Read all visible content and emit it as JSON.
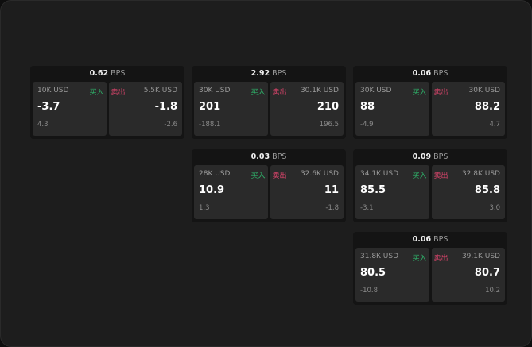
{
  "colors": {
    "buy": "#2fb36a",
    "sell": "#e0456d"
  },
  "labels": {
    "buy": "买入",
    "sell": "卖出",
    "unit": "BPS"
  },
  "cards": [
    {
      "spread": "0.62",
      "bid_size": "10K USD",
      "bid": "-3.7",
      "bid_change": "4.3",
      "ask_size": "5.5K USD",
      "ask": "-1.8",
      "ask_change": "-2.6"
    },
    {
      "spread": "2.92",
      "bid_size": "30K USD",
      "bid": "201",
      "bid_change": "-188.1",
      "ask_size": "30.1K USD",
      "ask": "210",
      "ask_change": "196.5"
    },
    {
      "spread": "0.06",
      "bid_size": "30K USD",
      "bid": "88",
      "bid_change": "-4.9",
      "ask_size": "30K USD",
      "ask": "88.2",
      "ask_change": "4.7"
    },
    {
      "spread": "0.03",
      "bid_size": "28K USD",
      "bid": "10.9",
      "bid_change": "1.3",
      "ask_size": "32.6K USD",
      "ask": "11",
      "ask_change": "-1.8"
    },
    {
      "spread": "0.09",
      "bid_size": "34.1K USD",
      "bid": "85.5",
      "bid_change": "-3.1",
      "ask_size": "32.8K USD",
      "ask": "85.8",
      "ask_change": "3.0"
    },
    {
      "spread": "0.06",
      "bid_size": "31.8K USD",
      "bid": "80.5",
      "bid_change": "-10.8",
      "ask_size": "39.1K USD",
      "ask": "80.7",
      "ask_change": "10.2"
    }
  ]
}
